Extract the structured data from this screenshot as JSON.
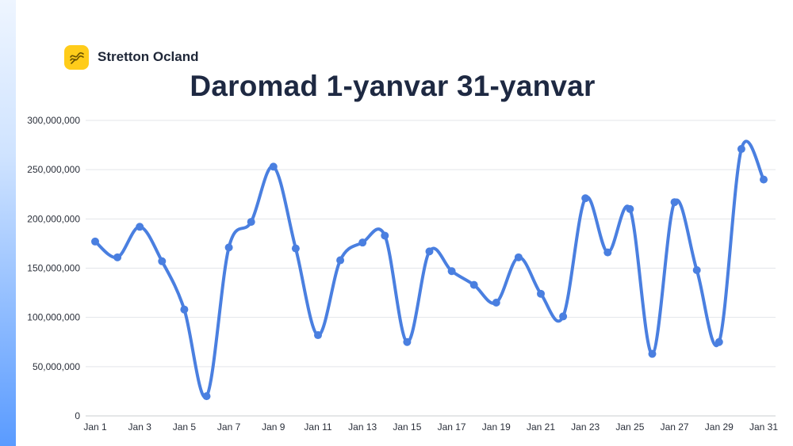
{
  "brand": {
    "name": "Stretton Ocland",
    "logo_icon": "chart-wave-icon",
    "logo_color": "#ffcc1a"
  },
  "chart_data": {
    "type": "line",
    "title": "Daromad 1-yanvar 31-yanvar",
    "xlabel": "",
    "ylabel": "",
    "ylim": [
      0,
      300000000
    ],
    "y_ticks": [
      0,
      50000000,
      100000000,
      150000000,
      200000000,
      250000000,
      300000000
    ],
    "y_tick_labels": [
      "0",
      "50,000,000",
      "100,000,000",
      "150,000,000",
      "200,000,000",
      "250,000,000",
      "300,000,000"
    ],
    "x": [
      "Jan 1",
      "Jan 2",
      "Jan 3",
      "Jan 4",
      "Jan 5",
      "Jan 6",
      "Jan 7",
      "Jan 8",
      "Jan 9",
      "Jan 10",
      "Jan 11",
      "Jan 12",
      "Jan 13",
      "Jan 14",
      "Jan 15",
      "Jan 16",
      "Jan 17",
      "Jan 18",
      "Jan 19",
      "Jan 20",
      "Jan 21",
      "Jan 22",
      "Jan 23",
      "Jan 24",
      "Jan 25",
      "Jan 26",
      "Jan 27",
      "Jan 28",
      "Jan 29",
      "Jan 30",
      "Jan 31"
    ],
    "x_tick_labels": [
      "Jan 1",
      "Jan 3",
      "Jan 5",
      "Jan 7",
      "Jan 9",
      "Jan 11",
      "Jan 13",
      "Jan 15",
      "Jan 17",
      "Jan 19",
      "Jan 21",
      "Jan 23",
      "Jan 25",
      "Jan 27",
      "Jan 29",
      "Jan 31"
    ],
    "series": [
      {
        "values": [
          177000000,
          161000000,
          192000000,
          157000000,
          108000000,
          20000000,
          171000000,
          197000000,
          253000000,
          170000000,
          82000000,
          158000000,
          176000000,
          183000000,
          75000000,
          167000000,
          147000000,
          133000000,
          115000000,
          161000000,
          124000000,
          101000000,
          221000000,
          166000000,
          210000000,
          63000000,
          217000000,
          148000000,
          75000000,
          271000000,
          240000000
        ],
        "color": "#4a7fe0"
      }
    ],
    "grid": true,
    "smooth": true
  }
}
